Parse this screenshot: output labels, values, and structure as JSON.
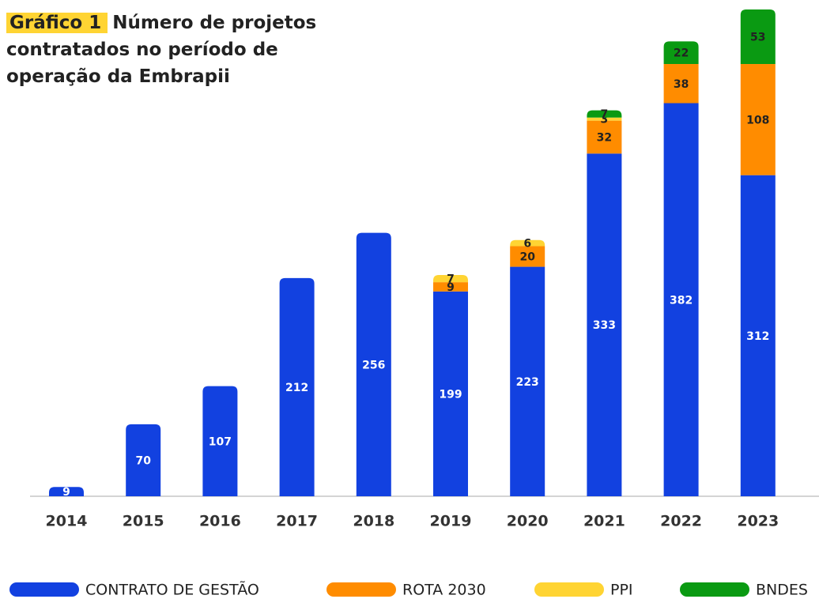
{
  "chart_data": {
    "type": "stacked_bar",
    "label": "Gráfico 1",
    "title": "Número de projetos contratados no período de operação da Embrapii",
    "categories": [
      "2014",
      "2015",
      "2016",
      "2017",
      "2018",
      "2019",
      "2020",
      "2021",
      "2022",
      "2023"
    ],
    "series": [
      {
        "name": "CONTRATO DE GESTÃO",
        "color": "#1241e0",
        "values": [
          9,
          70,
          107,
          212,
          256,
          199,
          223,
          333,
          382,
          312
        ]
      },
      {
        "name": "ROTA 2030",
        "color": "#ff8c00",
        "values": [
          null,
          null,
          null,
          null,
          null,
          9,
          20,
          32,
          38,
          108
        ]
      },
      {
        "name": "PPI",
        "color": "#ffd433",
        "values": [
          null,
          null,
          null,
          null,
          null,
          7,
          6,
          3,
          null,
          null
        ]
      },
      {
        "name": "BNDES",
        "color": "#0a9a12",
        "values": [
          null,
          null,
          null,
          null,
          null,
          null,
          null,
          7,
          22,
          53
        ]
      }
    ],
    "legend": "bottom"
  }
}
